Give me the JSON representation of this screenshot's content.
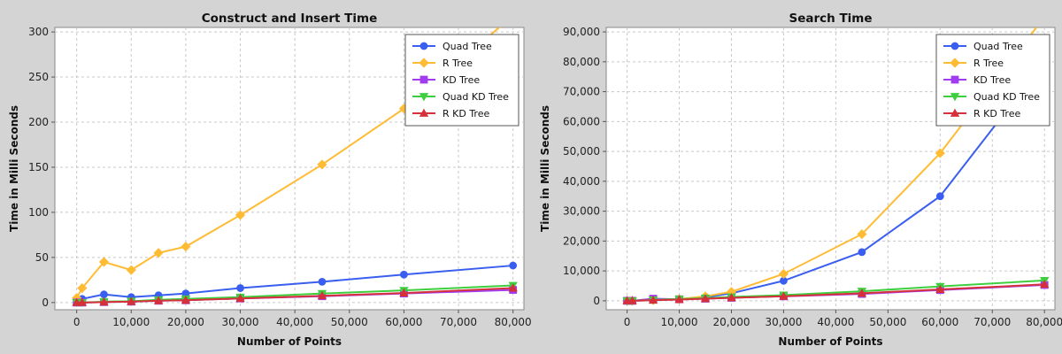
{
  "chart_data": [
    {
      "type": "line",
      "title": "Construct and Insert Time",
      "xlabel": "Number of Points",
      "ylabel": "Time in Milli Seconds",
      "x": [
        0,
        1000,
        5000,
        10000,
        15000,
        20000,
        30000,
        45000,
        60000,
        80000
      ],
      "xlim": [
        -4000,
        82000
      ],
      "ylim": [
        -8,
        305
      ],
      "xticks": [
        0,
        10000,
        20000,
        30000,
        40000,
        50000,
        60000,
        70000,
        80000
      ],
      "xtick_labels": [
        "0",
        "10,000",
        "20,000",
        "30,000",
        "40,000",
        "50,000",
        "60,000",
        "70,000",
        "80,000"
      ],
      "yticks": [
        0,
        50,
        100,
        150,
        200,
        250,
        300
      ],
      "ytick_labels": [
        "0",
        "50",
        "100",
        "150",
        "200",
        "250",
        "300"
      ],
      "grid": true,
      "legend_position": "top-right",
      "series": [
        {
          "name": "Quad Tree",
          "color": "#3a5ff0",
          "marker": "circle",
          "values": [
            4,
            4,
            9,
            6,
            8,
            10,
            16,
            23,
            31,
            41
          ]
        },
        {
          "name": "R Tree",
          "color": "#ffbb33",
          "marker": "diamond",
          "values": [
            5,
            16,
            45,
            36,
            55,
            62,
            97,
            153,
            215,
            318
          ]
        },
        {
          "name": "KD Tree",
          "color": "#a13cf0",
          "marker": "square",
          "values": [
            0,
            0,
            0.5,
            1,
            2,
            2.5,
            4.5,
            7,
            10,
            14
          ]
        },
        {
          "name": "Quad KD Tree",
          "color": "#3ecf3e",
          "marker": "triangle-down",
          "values": [
            0,
            0,
            1,
            1.5,
            3,
            4,
            6,
            10,
            13.5,
            19
          ]
        },
        {
          "name": "R KD Tree",
          "color": "#d6303a",
          "marker": "triangle-up",
          "values": [
            0,
            0,
            0.5,
            1,
            2,
            2.5,
            4.5,
            7.5,
            10.5,
            16
          ]
        }
      ]
    },
    {
      "type": "line",
      "title": "Search Time",
      "xlabel": "Number of Points",
      "ylabel": "Time in Milli Seconds",
      "x": [
        0,
        1000,
        5000,
        10000,
        15000,
        20000,
        30000,
        45000,
        60000,
        80000
      ],
      "xlim": [
        -4000,
        82000
      ],
      "ylim": [
        -3000,
        91500
      ],
      "xticks": [
        0,
        10000,
        20000,
        30000,
        40000,
        50000,
        60000,
        70000,
        80000
      ],
      "xtick_labels": [
        "0",
        "10,000",
        "20,000",
        "30,000",
        "40,000",
        "50,000",
        "60,000",
        "70,000",
        "80,000"
      ],
      "yticks": [
        0,
        10000,
        20000,
        30000,
        40000,
        50000,
        60000,
        70000,
        80000,
        90000
      ],
      "ytick_labels": [
        "0",
        "10,000",
        "20,000",
        "30,000",
        "40,000",
        "50,000",
        "60,000",
        "70,000",
        "80,000",
        "90,000"
      ],
      "grid": true,
      "legend_position": "top-right",
      "series": [
        {
          "name": "Quad Tree",
          "color": "#3a5ff0",
          "marker": "circle",
          "values": [
            0,
            0,
            200,
            500,
            1200,
            2500,
            6700,
            16300,
            35000,
            80000
          ]
        },
        {
          "name": "R Tree",
          "color": "#ffbb33",
          "marker": "diamond",
          "values": [
            0,
            0,
            200,
            600,
            1500,
            3000,
            9000,
            22300,
            49400,
            95000
          ]
        },
        {
          "name": "KD Tree",
          "color": "#a13cf0",
          "marker": "square",
          "values": [
            0,
            0,
            700,
            500,
            700,
            1000,
            1500,
            2300,
            3600,
            5300
          ]
        },
        {
          "name": "Quad KD Tree",
          "color": "#3ecf3e",
          "marker": "triangle-down",
          "values": [
            0,
            0,
            300,
            600,
            900,
            1300,
            1900,
            3200,
            4800,
            6800
          ]
        },
        {
          "name": "R KD Tree",
          "color": "#d6303a",
          "marker": "triangle-up",
          "values": [
            0,
            0,
            200,
            400,
            700,
            1000,
            1500,
            2500,
            3800,
            5500
          ]
        }
      ]
    }
  ]
}
